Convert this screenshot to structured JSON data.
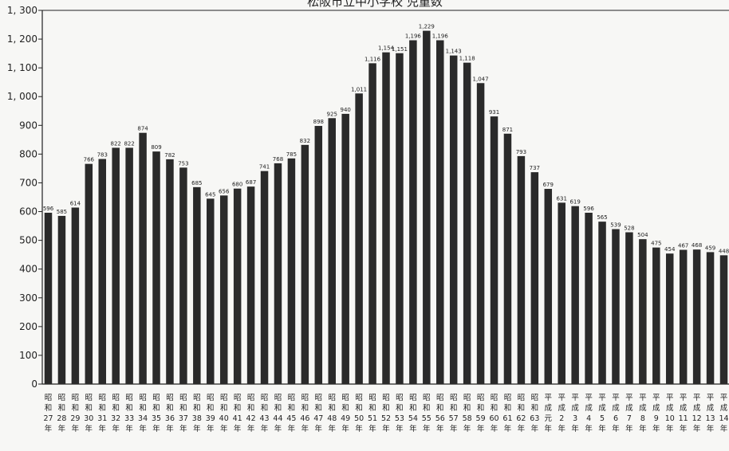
{
  "chart_data": {
    "type": "bar",
    "title": "松阪市立中小学校 児童数",
    "xlabel": "",
    "ylabel": "",
    "ylim": [
      0,
      1300
    ],
    "yticks": [
      0,
      100,
      200,
      300,
      400,
      500,
      600,
      700,
      800,
      900,
      1000,
      1100,
      1200,
      1300
    ],
    "ytick_labels": [
      "0",
      "100",
      "200",
      "300",
      "400",
      "500",
      "600",
      "700",
      "800",
      "900",
      "1, 000",
      "1, 100",
      "1, 200",
      "1, 300"
    ],
    "grid": false,
    "bar_color": "#2a2a2a",
    "categories": [
      [
        "昭",
        "和",
        "27",
        "年"
      ],
      [
        "昭",
        "和",
        "28",
        "年"
      ],
      [
        "昭",
        "和",
        "29",
        "年"
      ],
      [
        "昭",
        "和",
        "30",
        "年"
      ],
      [
        "昭",
        "和",
        "31",
        "年"
      ],
      [
        "昭",
        "和",
        "32",
        "年"
      ],
      [
        "昭",
        "和",
        "33",
        "年"
      ],
      [
        "昭",
        "和",
        "34",
        "年"
      ],
      [
        "昭",
        "和",
        "35",
        "年"
      ],
      [
        "昭",
        "和",
        "36",
        "年"
      ],
      [
        "昭",
        "和",
        "37",
        "年"
      ],
      [
        "昭",
        "和",
        "38",
        "年"
      ],
      [
        "昭",
        "和",
        "39",
        "年"
      ],
      [
        "昭",
        "和",
        "40",
        "年"
      ],
      [
        "昭",
        "和",
        "41",
        "年"
      ],
      [
        "昭",
        "和",
        "42",
        "年"
      ],
      [
        "昭",
        "和",
        "43",
        "年"
      ],
      [
        "昭",
        "和",
        "44",
        "年"
      ],
      [
        "昭",
        "和",
        "45",
        "年"
      ],
      [
        "昭",
        "和",
        "46",
        "年"
      ],
      [
        "昭",
        "和",
        "47",
        "年"
      ],
      [
        "昭",
        "和",
        "48",
        "年"
      ],
      [
        "昭",
        "和",
        "49",
        "年"
      ],
      [
        "昭",
        "和",
        "50",
        "年"
      ],
      [
        "昭",
        "和",
        "51",
        "年"
      ],
      [
        "昭",
        "和",
        "52",
        "年"
      ],
      [
        "昭",
        "和",
        "53",
        "年"
      ],
      [
        "昭",
        "和",
        "54",
        "年"
      ],
      [
        "昭",
        "和",
        "55",
        "年"
      ],
      [
        "昭",
        "和",
        "56",
        "年"
      ],
      [
        "昭",
        "和",
        "57",
        "年"
      ],
      [
        "昭",
        "和",
        "58",
        "年"
      ],
      [
        "昭",
        "和",
        "59",
        "年"
      ],
      [
        "昭",
        "和",
        "60",
        "年"
      ],
      [
        "昭",
        "和",
        "61",
        "年"
      ],
      [
        "昭",
        "和",
        "62",
        "年"
      ],
      [
        "昭",
        "和",
        "63",
        "年"
      ],
      [
        "平",
        "成",
        "元",
        "年"
      ],
      [
        "平",
        "成",
        "2",
        "年"
      ],
      [
        "平",
        "成",
        "3",
        "年"
      ],
      [
        "平",
        "成",
        "4",
        "年"
      ],
      [
        "平",
        "成",
        "5",
        "年"
      ],
      [
        "平",
        "成",
        "6",
        "年"
      ],
      [
        "平",
        "成",
        "7",
        "年"
      ],
      [
        "平",
        "成",
        "8",
        "年"
      ],
      [
        "平",
        "成",
        "9",
        "年"
      ],
      [
        "平",
        "成",
        "10",
        "年"
      ],
      [
        "平",
        "成",
        "11",
        "年"
      ],
      [
        "平",
        "成",
        "12",
        "年"
      ],
      [
        "平",
        "成",
        "13",
        "年"
      ],
      [
        "平",
        "成",
        "14",
        "年"
      ]
    ],
    "values": [
      596,
      585,
      614,
      766,
      783,
      822,
      822,
      874,
      809,
      782,
      753,
      685,
      645,
      656,
      680,
      687,
      741,
      768,
      785,
      832,
      898,
      925,
      940,
      1011,
      1116,
      1154,
      1151,
      1196,
      1229,
      1196,
      1143,
      1118,
      1047,
      931,
      871,
      793,
      737,
      679,
      631,
      619,
      596,
      565,
      539,
      528,
      504,
      475,
      454,
      467,
      468,
      459,
      448
    ],
    "data_labels": [
      "596",
      "585",
      "614",
      "766",
      "783",
      "822",
      "822",
      "874",
      "809",
      "782",
      "753",
      "685",
      "645",
      "656",
      "680",
      "687",
      "741",
      "768",
      "785",
      "832",
      "898",
      "925",
      "940",
      "1,011",
      "1,116",
      "1,154",
      "1,151",
      "1,196",
      "1,229",
      "1,196",
      "1,143",
      "1,118",
      "1,047",
      "931",
      "871",
      "793",
      "737",
      "679",
      "631",
      "619",
      "596",
      "565",
      "539",
      "528",
      "504",
      "475",
      "454",
      "467",
      "468",
      "459",
      "448"
    ]
  }
}
